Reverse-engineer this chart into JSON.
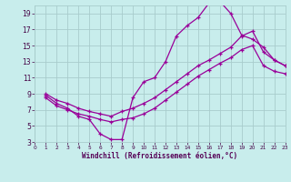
{
  "xlabel": "Windchill (Refroidissement éolien,°C)",
  "background_color": "#c8edec",
  "grid_color": "#a8cccc",
  "line_color": "#990099",
  "xlim": [
    0,
    23
  ],
  "ylim": [
    3,
    20
  ],
  "xticks": [
    0,
    1,
    2,
    3,
    4,
    5,
    6,
    7,
    8,
    9,
    10,
    11,
    12,
    13,
    14,
    15,
    16,
    17,
    18,
    19,
    20,
    21,
    22,
    23
  ],
  "yticks": [
    3,
    5,
    7,
    9,
    11,
    13,
    15,
    17,
    19
  ],
  "line1_x": [
    1,
    2,
    3,
    4,
    5,
    6,
    7,
    8,
    9,
    10,
    11,
    12,
    13,
    14,
    15,
    16,
    17,
    18,
    19,
    20,
    21,
    22,
    23
  ],
  "line1_y": [
    8.8,
    7.8,
    7.2,
    6.2,
    5.8,
    4.0,
    3.3,
    3.3,
    8.5,
    10.5,
    11.0,
    13.0,
    16.2,
    17.5,
    18.5,
    20.3,
    20.5,
    19.0,
    16.3,
    15.8,
    14.8,
    13.2,
    12.5
  ],
  "line2_x": [
    1,
    2,
    3,
    4,
    5,
    6,
    7,
    8,
    9,
    10,
    11,
    12,
    13,
    14,
    15,
    16,
    17,
    18,
    19,
    20,
    21,
    22,
    23
  ],
  "line2_y": [
    9.0,
    8.2,
    7.8,
    7.2,
    6.8,
    6.5,
    6.2,
    6.8,
    7.2,
    7.8,
    8.5,
    9.5,
    10.5,
    11.5,
    12.5,
    13.2,
    14.0,
    14.8,
    16.2,
    16.8,
    14.2,
    13.2,
    12.5
  ],
  "line3_x": [
    1,
    2,
    3,
    4,
    5,
    6,
    7,
    8,
    9,
    10,
    11,
    12,
    13,
    14,
    15,
    16,
    17,
    18,
    19,
    20,
    21,
    22,
    23
  ],
  "line3_y": [
    8.5,
    7.5,
    7.0,
    6.5,
    6.2,
    5.8,
    5.5,
    5.8,
    6.0,
    6.5,
    7.2,
    8.2,
    9.2,
    10.2,
    11.2,
    12.0,
    12.8,
    13.5,
    14.5,
    15.0,
    12.5,
    11.8,
    11.5
  ]
}
